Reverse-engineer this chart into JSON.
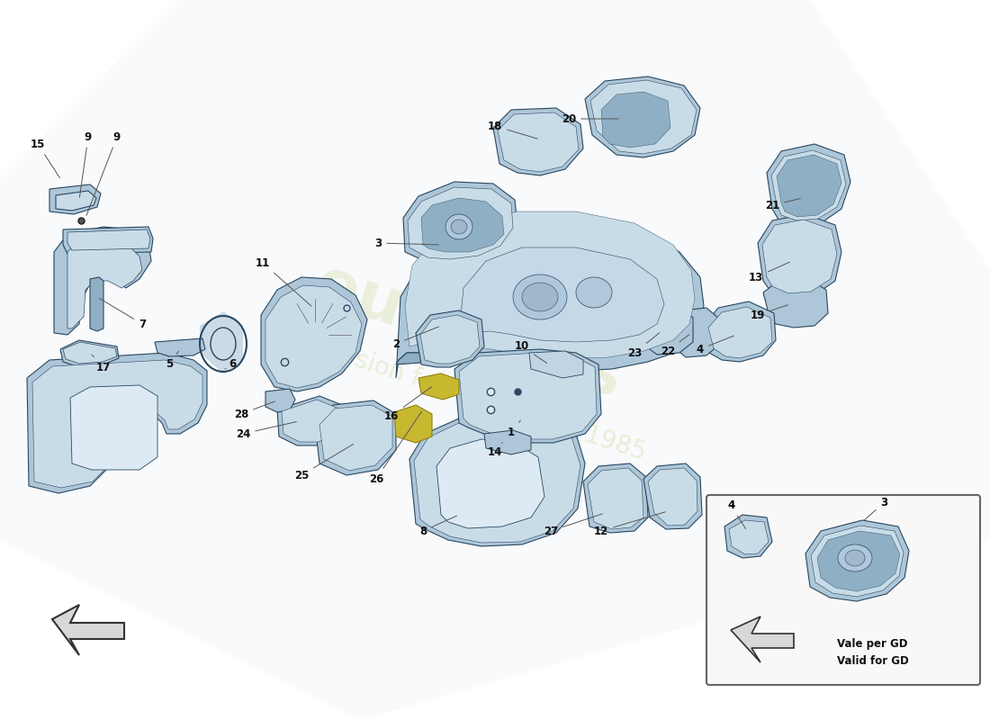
{
  "background_color": "#ffffff",
  "part_color_main": "#adc6d8",
  "part_color_light": "#c8dce8",
  "part_color_dark": "#7a9db5",
  "part_color_shadow": "#8fb0c4",
  "part_edge_color": "#2a4860",
  "text_color": "#111111",
  "watermark_text1": "eurocars",
  "watermark_text2": "a passion for excellence 1985",
  "watermark_color": "#c8d890",
  "inset_text1": "Vale per GD",
  "inset_text2": "Valid for GD",
  "gold_color": "#c8b830",
  "arrow_fill": "#d8d8d8",
  "arrow_edge": "#333333"
}
